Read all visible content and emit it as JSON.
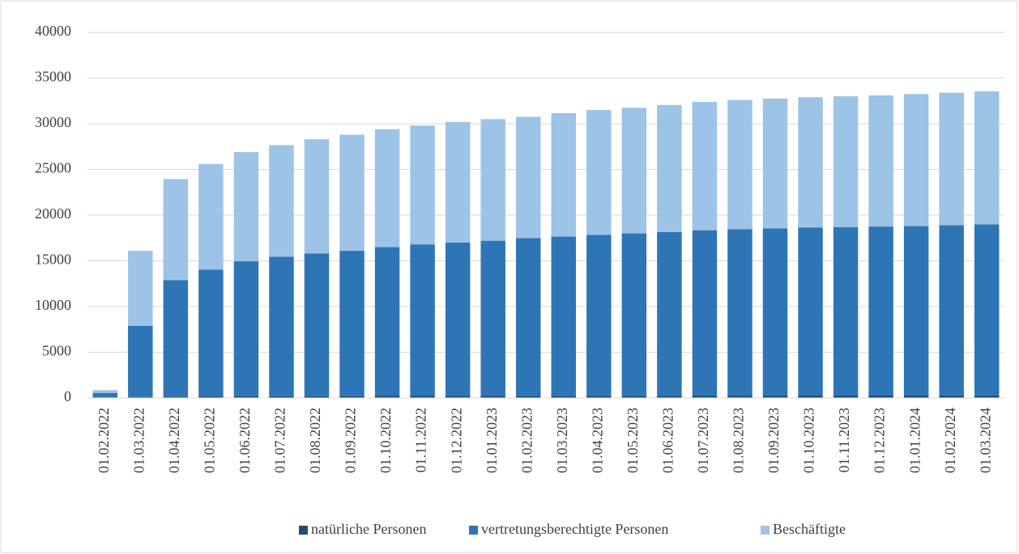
{
  "chart_data": {
    "type": "bar",
    "stacked": true,
    "categories": [
      "01.02.2022",
      "01.03.2022",
      "01.04.2022",
      "01.05.2022",
      "01.06.2022",
      "01.07.2022",
      "01.08.2022",
      "01.09.2022",
      "01.10.2022",
      "01.11.2022",
      "01.12.2022",
      "01.01.2023",
      "01.02.2023",
      "01.03.2023",
      "01.04.2023",
      "01.05.2023",
      "01.06.2023",
      "01.07.2023",
      "01.08.2023",
      "01.09.2023",
      "01.10.2023",
      "01.11.2023",
      "01.12.2023",
      "01.01.2024",
      "01.02.2024",
      "01.03.2024"
    ],
    "series": [
      {
        "name": "natürliche Personen",
        "color": "#1f4e79",
        "values": [
          50,
          100,
          150,
          170,
          180,
          190,
          200,
          210,
          220,
          220,
          230,
          230,
          240,
          240,
          250,
          250,
          250,
          260,
          260,
          260,
          270,
          270,
          270,
          270,
          280,
          280
        ]
      },
      {
        "name": "vertretungsberechtigte Personen",
        "color": "#2e75b6",
        "values": [
          500,
          7800,
          12750,
          13880,
          14770,
          15260,
          15600,
          15890,
          16280,
          16580,
          16770,
          16970,
          17260,
          17410,
          17600,
          17750,
          17900,
          18090,
          18190,
          18290,
          18380,
          18430,
          18480,
          18530,
          18620,
          18720
        ]
      },
      {
        "name": "Beschäftigte",
        "color": "#9dc3e6",
        "values": [
          300,
          8200,
          11050,
          11550,
          11950,
          12200,
          12500,
          12700,
          12900,
          13000,
          13200,
          13300,
          13250,
          13500,
          13650,
          13750,
          13900,
          14050,
          14150,
          14200,
          14250,
          14300,
          14350,
          14450,
          14500,
          14550
        ]
      }
    ],
    "ylim": [
      0,
      40000
    ],
    "yticks": [
      0,
      5000,
      10000,
      15000,
      20000,
      25000,
      30000,
      35000,
      40000
    ],
    "grid": true,
    "legend": "bottom"
  }
}
